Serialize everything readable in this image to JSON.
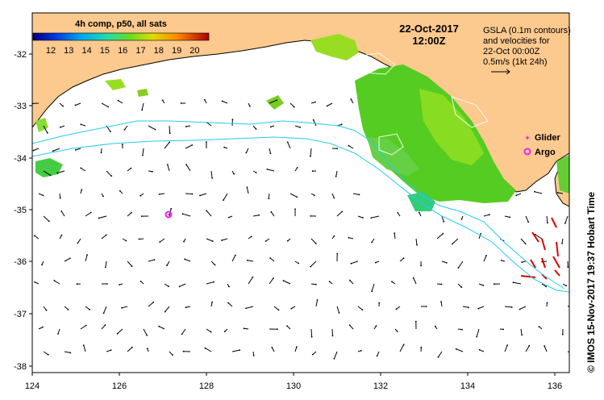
{
  "colorbar": {
    "title": "4h comp, p50, all sats",
    "ticks": [
      "12",
      "13",
      "14",
      "15",
      "16",
      "17",
      "18",
      "19",
      "20"
    ]
  },
  "date": "22-Oct-2017",
  "time": "12:00Z",
  "gsla_note": {
    "line1": "GSLA (0.1m contours)",
    "line2": "and velocities for",
    "line3": "22-Oct 00:00Z",
    "line4": "0.5m/s (1kt 24h)"
  },
  "legend": {
    "glider": "Glider",
    "argo": "Argo",
    "glider_color": "#ee22ee",
    "argo_color": "#ee22ee"
  },
  "axes": {
    "x_ticks": [
      "124",
      "126",
      "128",
      "130",
      "132",
      "134",
      "136"
    ],
    "y_ticks": [
      "-32",
      "-33",
      "-34",
      "-35",
      "-36",
      "-37",
      "-38"
    ]
  },
  "credit": "© IMOS 15-Nov-2017 19:37 Hobart Time",
  "colors": {
    "land": "#fcc98e",
    "ocean": "#ffffff",
    "sst_green": "#55cc22",
    "contour_cyan": "#22ccee"
  }
}
